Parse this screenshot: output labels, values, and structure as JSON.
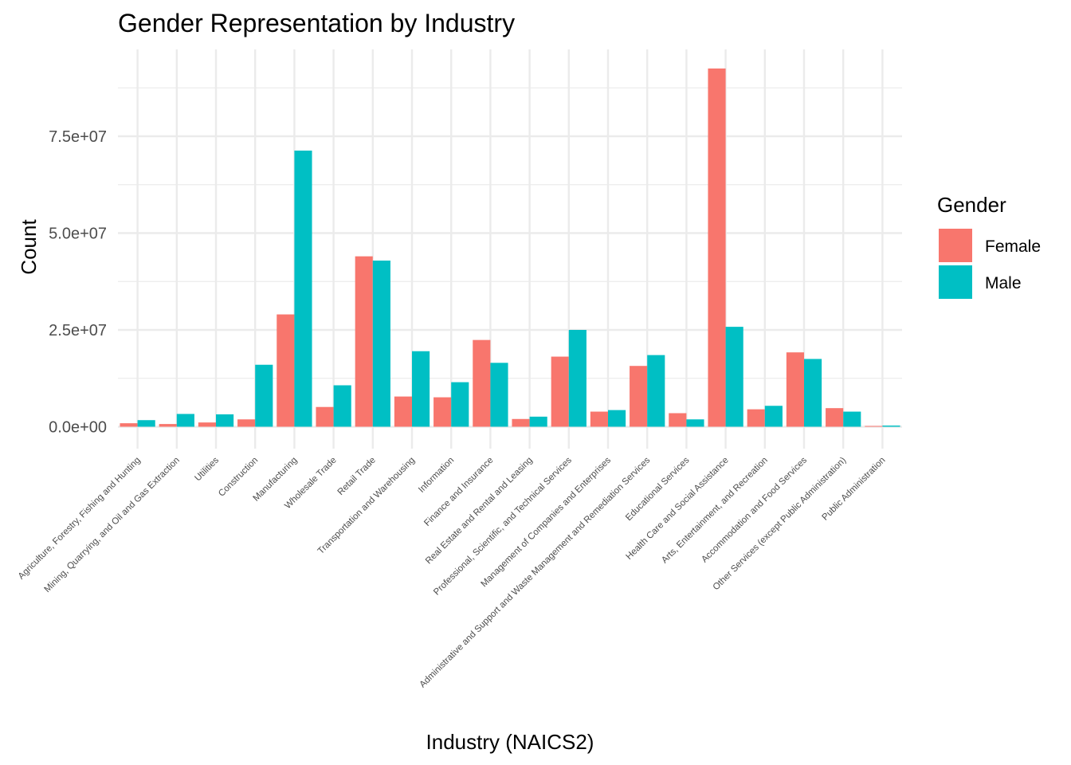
{
  "chart_data": {
    "type": "bar",
    "title": "Gender Representation by Industry",
    "xlabel": "Industry (NAICS2)",
    "ylabel": "Count",
    "ylim": [
      -3000000,
      97000000
    ],
    "yticks": [
      0,
      25000000,
      50000000,
      75000000
    ],
    "ytick_labels": [
      "0.0e+00",
      "2.5e+07",
      "5.0e+07",
      "7.5e+07"
    ],
    "grid": true,
    "legend": {
      "title": "Gender",
      "position": "right"
    },
    "categories": [
      "Agriculture, Forestry, Fishing and Hunting",
      "Mining, Quarrying, and Oil and Gas Extraction",
      "Utilities",
      "Construction",
      "Manufacturing",
      "Wholesale Trade",
      "Retail Trade",
      "Transportation and Warehousing",
      "Information",
      "Finance and Insurance",
      "Real Estate and Rental and Leasing",
      "Professional, Scientific, and Technical Services",
      "Management of Companies and Enterprises",
      "Administrative and Support and Waste Management and Remediation Services",
      "Educational Services",
      "Health Care and Social Assistance",
      "Arts, Entertainment, and Recreation",
      "Accommodation and Food Services",
      "Other Services (except Public Administration)",
      "Public Administration"
    ],
    "series": [
      {
        "name": "Female",
        "color": "#F8766D",
        "values": [
          900000,
          700000,
          1100000,
          1900000,
          29000000,
          5100000,
          44000000,
          7800000,
          7600000,
          22400000,
          2000000,
          18100000,
          3900000,
          15700000,
          3500000,
          92500000,
          4500000,
          19200000,
          4800000,
          200000
        ]
      },
      {
        "name": "Male",
        "color": "#00BFC4",
        "values": [
          1700000,
          3300000,
          3200000,
          16000000,
          71300000,
          10700000,
          42900000,
          19500000,
          11500000,
          16500000,
          2600000,
          25000000,
          4300000,
          18500000,
          1900000,
          25800000,
          5400000,
          17500000,
          3900000,
          300000
        ]
      }
    ]
  }
}
